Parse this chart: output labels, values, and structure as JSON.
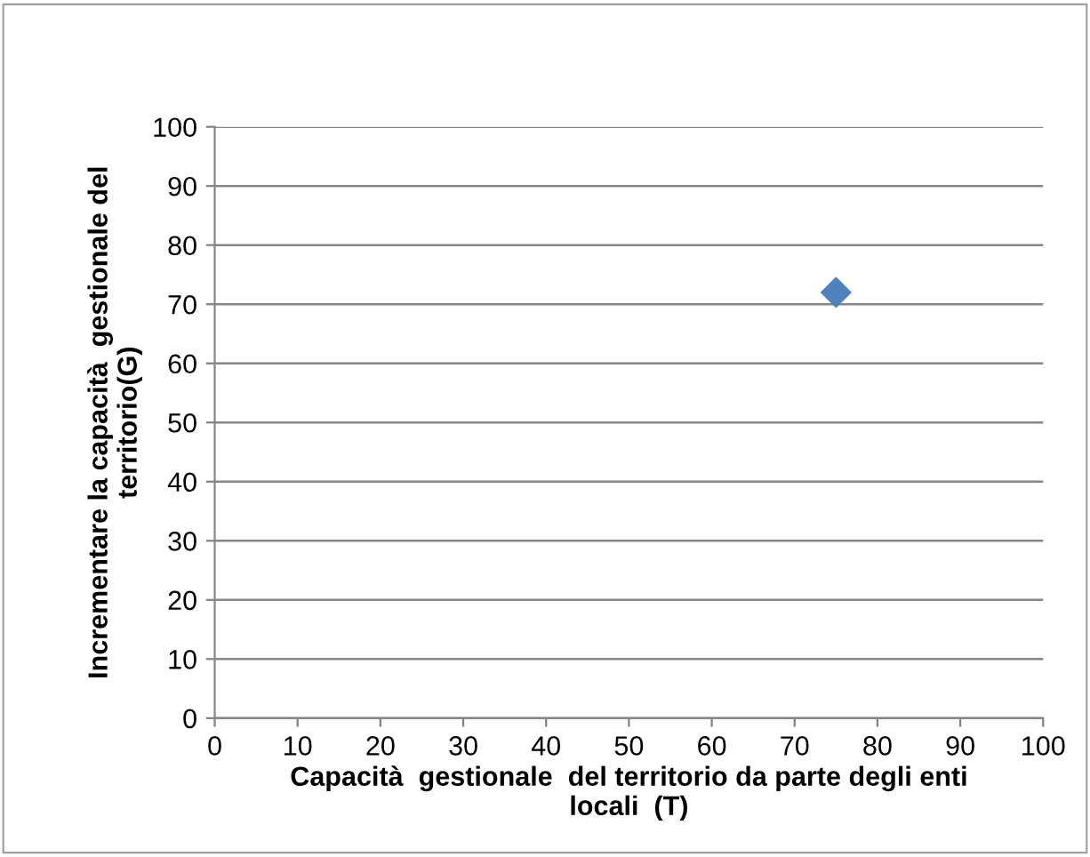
{
  "chart_data": {
    "type": "scatter",
    "xlabel": "Capacità  gestionale  del territorio da parte degli enti\nlocali  (T)",
    "ylabel": "Incrementare la capacità  gestionale del\nterritorio(G)",
    "series": [
      {
        "color": "#4f81bd",
        "x": [
          75
        ],
        "values": [
          72
        ]
      }
    ],
    "xlim": [
      0,
      100
    ],
    "ylim": [
      0,
      100
    ],
    "xticks": [
      0,
      10,
      20,
      30,
      40,
      50,
      60,
      70,
      80,
      90,
      100
    ],
    "yticks": [
      0,
      10,
      20,
      30,
      40,
      50,
      60,
      70,
      80,
      90,
      100
    ],
    "grid": "y",
    "marker": "diamond",
    "legend": false
  }
}
